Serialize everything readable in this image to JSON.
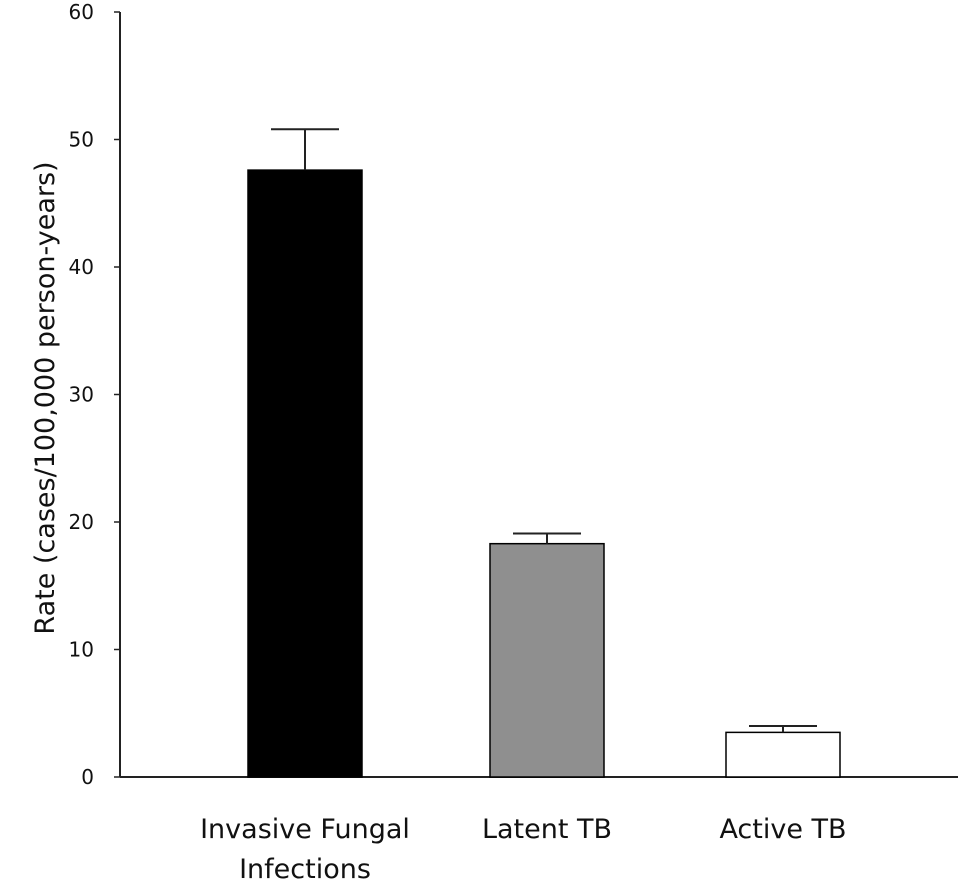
{
  "chart_data": {
    "type": "bar",
    "title": "",
    "xlabel": "",
    "ylabel": "Rate (cases/100,000 person-years)",
    "ylim": [
      0,
      60
    ],
    "yticks": [
      0,
      10,
      20,
      30,
      40,
      50,
      60
    ],
    "grid": false,
    "categories": [
      [
        "Invasive Fungal",
        "Infections"
      ],
      [
        "Latent TB"
      ],
      [
        "Active TB"
      ]
    ],
    "values": [
      47.6,
      18.3,
      3.5
    ],
    "error_upper": [
      50.8,
      19.1,
      4.0
    ],
    "colors": [
      "#000000",
      "#8f8f8f",
      "#ffffff"
    ],
    "stroke": "#000000"
  }
}
